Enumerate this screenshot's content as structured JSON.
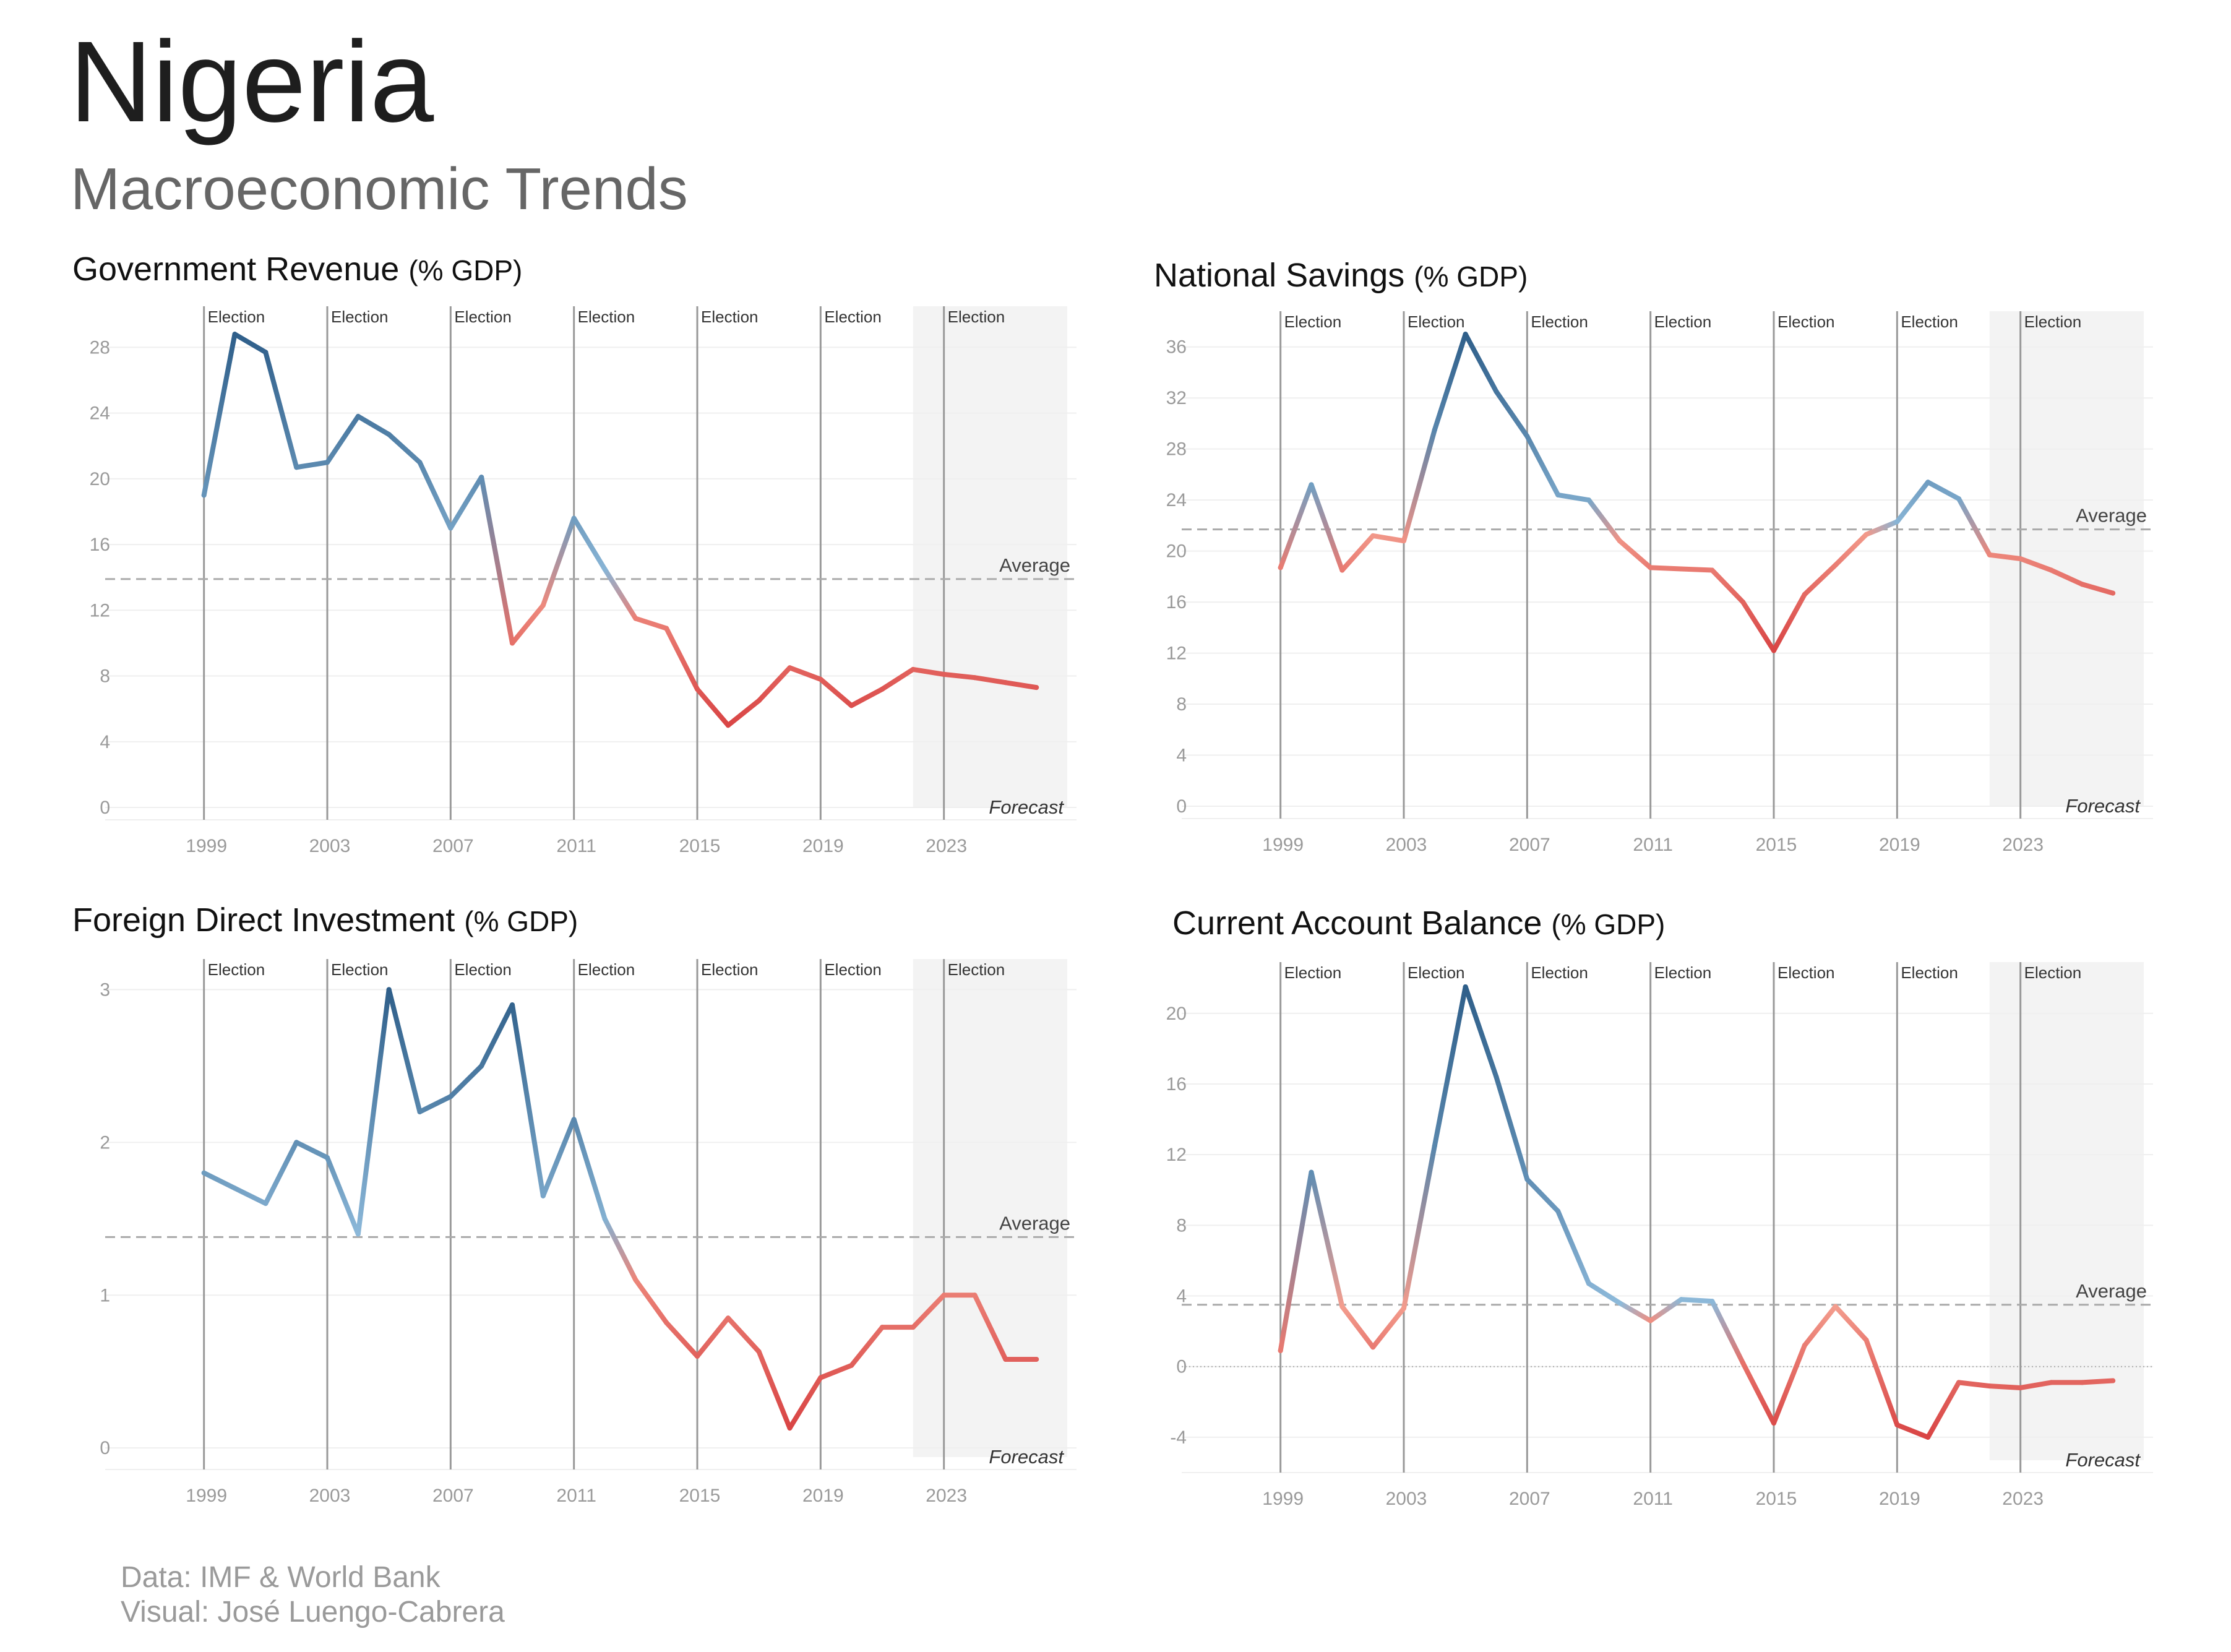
{
  "header": {
    "title": "Nigeria",
    "subtitle": "Macroeconomic Trends"
  },
  "footer": {
    "source": "Data: IMF & World Bank",
    "credit": "Visual: José Luengo-Cabrera"
  },
  "labels": {
    "election": "Election",
    "average": "Average",
    "forecast": "Forecast"
  },
  "colors": {
    "high": "#2f5f8a",
    "mid_high": "#8fbbdb",
    "mid_low": "#f4a090",
    "low": "#d94545",
    "forecast_band": "#f3f3f3",
    "average_line": "#aaaaaa",
    "election_line": "#999999"
  },
  "chart_data": [
    {
      "id": "revenue",
      "type": "line",
      "title": "Government Revenue",
      "unit": "(% GDP)",
      "x": [
        1999,
        2000,
        2001,
        2002,
        2003,
        2004,
        2005,
        2006,
        2007,
        2008,
        2009,
        2010,
        2011,
        2012,
        2013,
        2014,
        2015,
        2016,
        2017,
        2018,
        2019,
        2020,
        2021,
        2022,
        2023,
        2024,
        2025,
        2026
      ],
      "values": [
        19.0,
        28.8,
        27.7,
        20.7,
        21.0,
        23.8,
        22.7,
        21.0,
        17.0,
        20.1,
        10.0,
        12.3,
        17.6,
        14.5,
        11.5,
        10.9,
        7.2,
        5.0,
        6.5,
        8.5,
        7.8,
        6.2,
        7.2,
        8.4,
        8.1,
        7.9,
        7.6,
        7.3
      ],
      "average": 13.9,
      "y_ticks": [
        0,
        4,
        8,
        12,
        16,
        20,
        24,
        28
      ],
      "x_ticks": [
        1999,
        2003,
        2007,
        2011,
        2015,
        2019,
        2023
      ],
      "elections": [
        1999,
        2003,
        2007,
        2011,
        2015,
        2019,
        2023
      ],
      "forecast_start": 2022,
      "ylim": [
        0,
        30.5
      ],
      "xlim": [
        1997,
        2027
      ],
      "grid": true
    },
    {
      "id": "savings",
      "type": "line",
      "title": "National Savings",
      "unit": "(% GDP)",
      "x": [
        1999,
        2000,
        2001,
        2002,
        2003,
        2004,
        2005,
        2006,
        2007,
        2008,
        2009,
        2010,
        2011,
        2012,
        2013,
        2014,
        2015,
        2016,
        2017,
        2018,
        2019,
        2020,
        2021,
        2022,
        2023,
        2024,
        2025,
        2026
      ],
      "values": [
        18.7,
        25.2,
        18.5,
        21.2,
        20.8,
        29.5,
        37.0,
        32.5,
        29.0,
        24.4,
        24.0,
        20.8,
        18.7,
        18.6,
        18.5,
        16.0,
        12.2,
        16.6,
        18.9,
        21.3,
        22.3,
        25.4,
        24.1,
        19.7,
        19.4,
        18.5,
        17.4,
        16.7
      ],
      "average": 21.7,
      "y_ticks": [
        0,
        4,
        8,
        12,
        16,
        20,
        24,
        28,
        32,
        36
      ],
      "x_ticks": [
        1999,
        2003,
        2007,
        2011,
        2015,
        2019,
        2023
      ],
      "elections": [
        1999,
        2003,
        2007,
        2011,
        2015,
        2019,
        2023
      ],
      "forecast_start": 2022,
      "ylim": [
        0,
        38.8
      ],
      "xlim": [
        1997,
        2027
      ],
      "grid": true
    },
    {
      "id": "fdi",
      "type": "line",
      "title": "Foreign Direct Investment",
      "unit": "(% GDP)",
      "x": [
        1999,
        2000,
        2001,
        2002,
        2003,
        2004,
        2005,
        2006,
        2007,
        2008,
        2009,
        2010,
        2011,
        2012,
        2013,
        2014,
        2015,
        2016,
        2017,
        2018,
        2019,
        2020,
        2021,
        2022,
        2023,
        2024,
        2025,
        2026
      ],
      "values": [
        1.8,
        1.7,
        1.6,
        2.0,
        1.9,
        1.4,
        3.0,
        2.2,
        2.3,
        2.5,
        2.9,
        1.65,
        2.15,
        1.5,
        1.1,
        0.82,
        0.6,
        0.85,
        0.63,
        0.13,
        0.46,
        0.54,
        0.79,
        0.79,
        1.0,
        1.0,
        0.58,
        0.58
      ],
      "average": 1.38,
      "y_ticks": [
        0,
        1,
        2,
        3
      ],
      "x_ticks": [
        1999,
        2003,
        2007,
        2011,
        2015,
        2019,
        2023
      ],
      "elections": [
        1999,
        2003,
        2007,
        2011,
        2015,
        2019,
        2023
      ],
      "forecast_start": 2022,
      "ylim": [
        -0.06,
        3.2
      ],
      "xlim": [
        1997,
        2027
      ],
      "grid": true
    },
    {
      "id": "cab",
      "type": "line",
      "title": "Current Account Balance",
      "unit": "(% GDP)",
      "x": [
        1999,
        2000,
        2001,
        2002,
        2003,
        2004,
        2005,
        2006,
        2007,
        2008,
        2009,
        2010,
        2011,
        2012,
        2013,
        2014,
        2015,
        2016,
        2017,
        2018,
        2019,
        2020,
        2021,
        2022,
        2023,
        2024,
        2025,
        2026
      ],
      "values": [
        0.9,
        11.0,
        3.4,
        1.1,
        3.3,
        12.5,
        21.5,
        16.4,
        10.6,
        8.8,
        4.7,
        3.6,
        2.6,
        3.8,
        3.7,
        0.2,
        -3.2,
        1.2,
        3.4,
        1.5,
        -3.3,
        -4.0,
        -0.9,
        -1.1,
        -1.2,
        -0.9,
        -0.9,
        -0.8
      ],
      "average": 3.5,
      "y_ticks": [
        -4,
        0,
        4,
        8,
        12,
        16,
        20
      ],
      "x_ticks": [
        1999,
        2003,
        2007,
        2011,
        2015,
        2019,
        2023
      ],
      "elections": [
        1999,
        2003,
        2007,
        2011,
        2015,
        2019,
        2023
      ],
      "forecast_start": 2022,
      "ylim": [
        -5.3,
        22.9
      ],
      "xlim": [
        1997,
        2027
      ],
      "grid": true,
      "zero_line": true
    }
  ]
}
